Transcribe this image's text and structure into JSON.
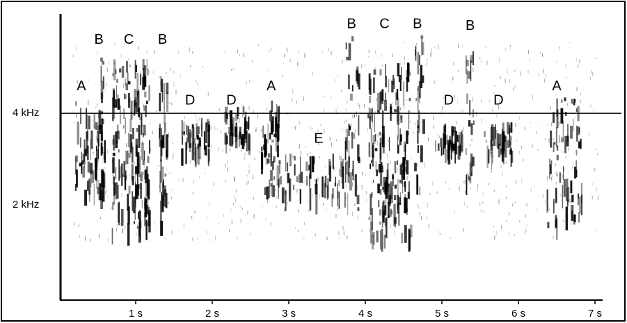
{
  "chart_data": {
    "type": "spectrogram",
    "xlim": [
      0,
      7.2
    ],
    "ylim": [
      0,
      6.2
    ],
    "xticks": [
      {
        "value": 1,
        "label": "1 s"
      },
      {
        "value": 2,
        "label": "2 s"
      },
      {
        "value": 3,
        "label": "3 s"
      },
      {
        "value": 4,
        "label": "4 s"
      },
      {
        "value": 5,
        "label": "5 s"
      },
      {
        "value": 6,
        "label": "6 s"
      },
      {
        "value": 7,
        "label": "7 s"
      }
    ],
    "yticks": [
      {
        "value": 2,
        "label": "2 kHz"
      },
      {
        "value": 4,
        "label": "4 kHz"
      }
    ],
    "annotations": [
      {
        "text": "A",
        "x": 0.29,
        "y": 4.58
      },
      {
        "text": "B",
        "x": 0.52,
        "y": 5.6
      },
      {
        "text": "C",
        "x": 0.91,
        "y": 5.6
      },
      {
        "text": "B",
        "x": 1.35,
        "y": 5.6
      },
      {
        "text": "D",
        "x": 1.71,
        "y": 4.27
      },
      {
        "text": "D",
        "x": 2.25,
        "y": 4.27
      },
      {
        "text": "A",
        "x": 2.77,
        "y": 4.58
      },
      {
        "text": "E",
        "x": 3.39,
        "y": 3.44
      },
      {
        "text": "B",
        "x": 3.82,
        "y": 5.94
      },
      {
        "text": "C",
        "x": 4.25,
        "y": 5.94
      },
      {
        "text": "B",
        "x": 4.68,
        "y": 5.94
      },
      {
        "text": "D",
        "x": 5.09,
        "y": 4.27
      },
      {
        "text": "B",
        "x": 5.37,
        "y": 5.9
      },
      {
        "text": "D",
        "x": 5.74,
        "y": 4.27
      },
      {
        "text": "A",
        "x": 6.5,
        "y": 4.58
      }
    ]
  }
}
